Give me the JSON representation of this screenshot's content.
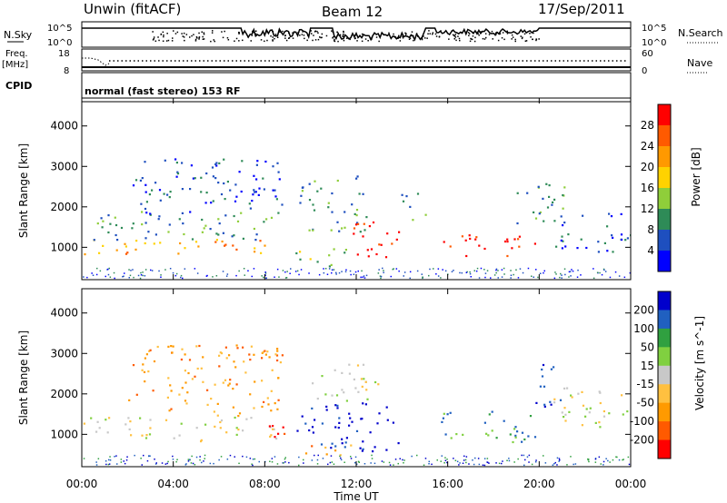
{
  "header": {
    "station": "Unwin (fitACF)",
    "beam": "Beam 12",
    "date": "17/Sep/2011"
  },
  "top_panels": {
    "nsky_label": "N.Sky",
    "nsky_ticks": [
      "10^5",
      "10^0"
    ],
    "nsearch_label": "N.Search",
    "nsearch_ticks": [
      "10^5",
      "10^0"
    ],
    "freq_label": "Freq.",
    "freq_unit": "[MHz]",
    "freq_ticks": [
      "18",
      "8"
    ],
    "nave_label": "Nave",
    "nave_ticks": [
      "60",
      "0"
    ],
    "cpid_label": "CPID",
    "cpid_text": "normal (fast stereo) 153 RF"
  },
  "chart_data": [
    {
      "type": "heatmap",
      "panel": "power",
      "ylabel": "Slant Range [km]",
      "y_ticks": [
        "1000",
        "2000",
        "3000",
        "4000"
      ],
      "ylim": [
        200,
        4600
      ],
      "xlim_hours": [
        0,
        24
      ],
      "colorbar_label": "Power [dB]",
      "colorbar_ticks": [
        "4",
        "8",
        "12",
        "16",
        "20",
        "24",
        "28"
      ],
      "colors": [
        "#0000ff",
        "#1e4fbf",
        "#2e8b57",
        "#8fce3a",
        "#ffd200",
        "#ff9900",
        "#ff5a00",
        "#ff0000"
      ],
      "regions": [
        {
          "t0": 0.0,
          "t1": 8.5,
          "r0": 850,
          "r1": 1250,
          "level": 5
        },
        {
          "t0": 0.5,
          "t1": 8.8,
          "r0": 1200,
          "r1": 1900,
          "level": 2
        },
        {
          "t0": 2.2,
          "t1": 8.9,
          "r0": 1800,
          "r1": 3250,
          "level": 1
        },
        {
          "t0": 9.5,
          "t1": 12.5,
          "r0": 1400,
          "r1": 2800,
          "level": 2
        },
        {
          "t0": 11.6,
          "t1": 13.9,
          "r0": 700,
          "r1": 1650,
          "level": 7
        },
        {
          "t0": 13.9,
          "t1": 15.0,
          "r0": 1700,
          "r1": 2450,
          "level": 2
        },
        {
          "t0": 15.7,
          "t1": 19.8,
          "r0": 800,
          "r1": 1350,
          "level": 7
        },
        {
          "t0": 19.0,
          "t1": 21.5,
          "r0": 1600,
          "r1": 2600,
          "level": 2
        },
        {
          "t0": 20.5,
          "t1": 24.0,
          "r0": 900,
          "r1": 1900,
          "level": 1
        },
        {
          "t0": 9.2,
          "t1": 11.6,
          "r0": 500,
          "r1": 1000,
          "level": 3
        }
      ]
    },
    {
      "type": "heatmap",
      "panel": "velocity",
      "ylabel": "Slant Range [km]",
      "y_ticks": [
        "1000",
        "2000",
        "3000",
        "4000"
      ],
      "ylim": [
        200,
        4600
      ],
      "xlim_hours": [
        0,
        24
      ],
      "x_ticks": [
        "00:00",
        "04:00",
        "08:00",
        "12:00",
        "16:00",
        "20:00",
        "00:00"
      ],
      "xlabel": "Time UT",
      "colorbar_label": "Velocity [m s^-1]",
      "colorbar_ticks": [
        "200",
        "100",
        "50",
        "15",
        "-15",
        "-50",
        "-100",
        "-200"
      ],
      "colors": [
        "#0000cc",
        "#2060c0",
        "#30a040",
        "#80d040",
        "#c8c8c8",
        "#ffc040",
        "#ff9a00",
        "#ff5a00",
        "#ff0000"
      ],
      "regions": [
        {
          "t0": 0.0,
          "t1": 8.5,
          "r0": 850,
          "r1": 1450,
          "level": 4
        },
        {
          "t0": 2.0,
          "t1": 8.8,
          "r0": 1450,
          "r1": 3250,
          "level": 6
        },
        {
          "t0": 8.0,
          "t1": 9.2,
          "r0": 750,
          "r1": 1300,
          "level": 8
        },
        {
          "t0": 9.3,
          "t1": 13.9,
          "r0": 600,
          "r1": 1800,
          "level": 0
        },
        {
          "t0": 10.0,
          "t1": 13.0,
          "r0": 1800,
          "r1": 2800,
          "level": 4
        },
        {
          "t0": 15.7,
          "t1": 19.8,
          "r0": 800,
          "r1": 1600,
          "level": 2
        },
        {
          "t0": 19.8,
          "t1": 21.0,
          "r0": 1600,
          "r1": 2800,
          "level": 0
        },
        {
          "t0": 20.5,
          "t1": 24.0,
          "r0": 1200,
          "r1": 2200,
          "level": 4
        },
        {
          "t0": 9.6,
          "t1": 12.0,
          "r0": 450,
          "r1": 750,
          "level": 6
        }
      ]
    }
  ]
}
